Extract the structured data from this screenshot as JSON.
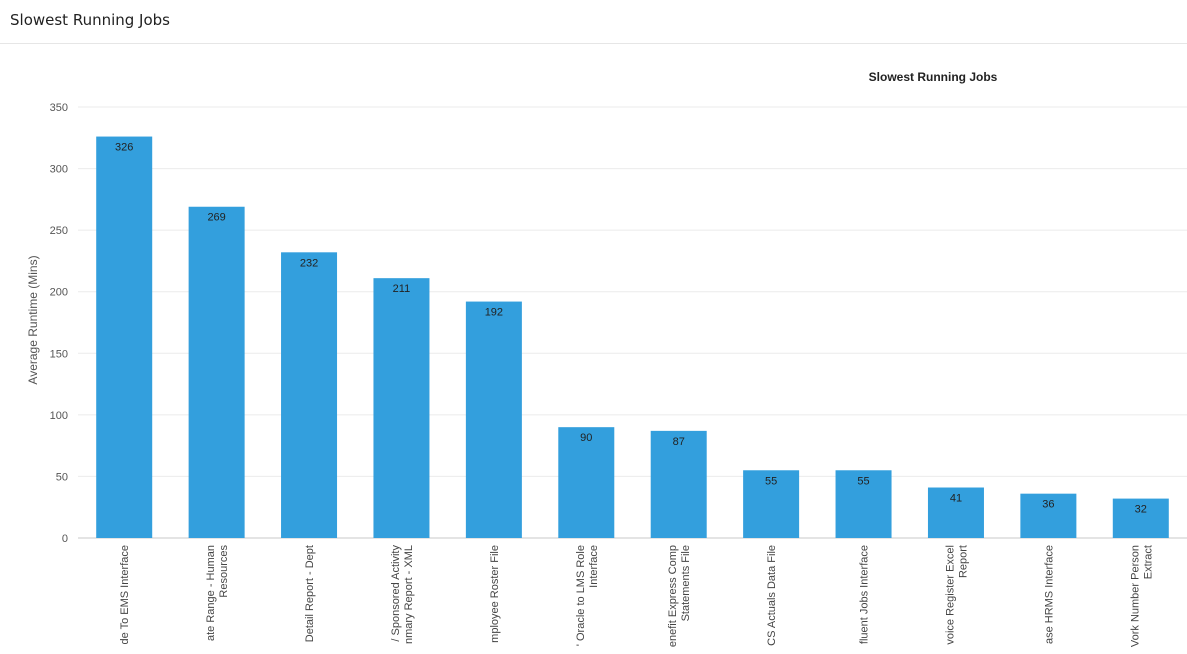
{
  "header": {
    "title": "Slowest Running Jobs"
  },
  "chart_data": {
    "type": "bar",
    "title": "Slowest Running Jobs",
    "ylabel": "Average Runtime (Mins)",
    "xlabel": "",
    "ylim": [
      0,
      350
    ],
    "yticks": [
      0,
      50,
      100,
      150,
      200,
      250,
      300,
      350
    ],
    "grid": true,
    "bar_color": "#339fdd",
    "categories": [
      [
        "de To EMS Interface"
      ],
      [
        "ate Range - Human",
        "Resources"
      ],
      [
        "Detail Report - Dept"
      ],
      [
        "/ Sponsored Activity",
        "nmary Report - XML"
      ],
      [
        "mployee Roster File"
      ],
      [
        "' Oracle to LMS Role",
        "Interface"
      ],
      [
        "enefit Express Comp",
        "Statements File"
      ],
      [
        "CS Actuals Data File"
      ],
      [
        "fluent Jobs Interface"
      ],
      [
        "voice Register Excel",
        "Report"
      ],
      [
        "ase HRMS Interface"
      ],
      [
        "Vork Number Person",
        "Extract"
      ]
    ],
    "values": [
      326,
      269,
      232,
      211,
      192,
      90,
      87,
      55,
      55,
      41,
      36,
      32
    ]
  }
}
